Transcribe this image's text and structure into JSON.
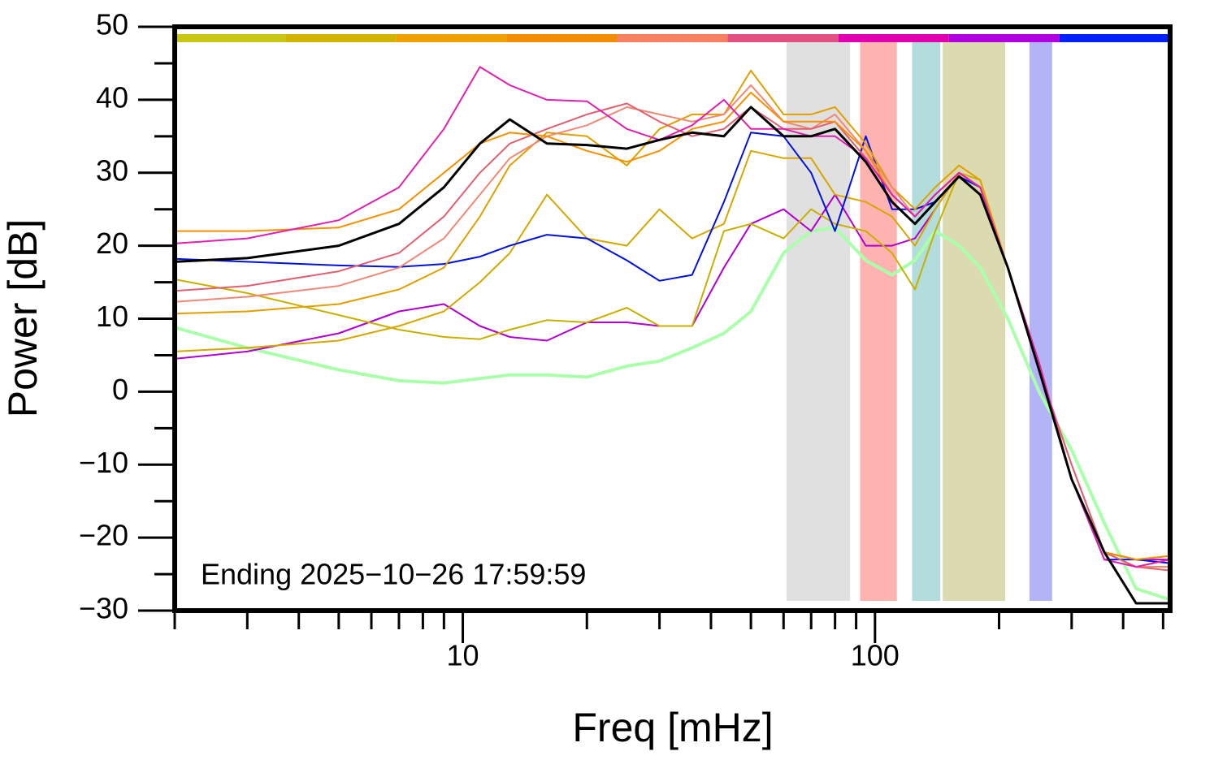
{
  "chart_data": {
    "type": "line",
    "x_label": "Freq [mHz]",
    "y_label": "Power [dB]",
    "annotation": "Ending 2025−10−26 17:59:59",
    "xlog": true,
    "xlim": [
      2,
      520
    ],
    "ylim": [
      -30,
      50
    ],
    "xticks": [
      10,
      100
    ],
    "xminor_ticks": [
      2,
      3,
      4,
      5,
      6,
      7,
      8,
      9,
      20,
      30,
      40,
      50,
      60,
      70,
      80,
      90,
      200,
      300,
      400,
      500
    ],
    "yticks": [
      50,
      40,
      30,
      20,
      10,
      0,
      {
        "value": -10,
        "label": "−10"
      },
      {
        "value": -20,
        "label": "−20"
      },
      {
        "value": -30,
        "label": "−30"
      }
    ],
    "yminor_ticks": [
      45,
      35,
      25,
      15,
      5,
      -5,
      -15,
      -25
    ],
    "color_bar": [
      "#c8c814",
      "#d4b400",
      "#f0a000",
      "#f48c00",
      "#f88060",
      "#e05080",
      "#e000b0",
      "#b000e0",
      "#0020ff"
    ],
    "bands": [
      {
        "start": 61,
        "end": 87,
        "color": "#e0e0e0"
      },
      {
        "start": 92,
        "end": 113,
        "color": "#ffb3b0"
      },
      {
        "start": 123,
        "end": 144,
        "color": "#b3dcdc"
      },
      {
        "start": 146,
        "end": 207,
        "color": "#dcdab0"
      },
      {
        "start": 237,
        "end": 269,
        "color": "#b3b3f8"
      }
    ],
    "x": [
      2,
      3,
      5,
      7,
      9,
      11,
      13,
      16,
      20,
      25,
      30,
      36,
      43,
      50,
      60,
      70,
      80,
      95,
      110,
      125,
      140,
      160,
      180,
      210,
      250,
      300,
      360,
      430,
      520
    ],
    "series": [
      {
        "color": "#aaffaa",
        "width": 4,
        "values": [
          8.8,
          6,
          3,
          1.5,
          1.2,
          1.8,
          2.3,
          2.3,
          2,
          3.5,
          4.2,
          6,
          8,
          11,
          19,
          22,
          22.5,
          18,
          16,
          18,
          22,
          20,
          17,
          10,
          0,
          -8,
          -18,
          -27,
          -28.5
        ]
      },
      {
        "color": "#b000d0",
        "width": 2,
        "values": [
          4.5,
          5.5,
          8,
          11,
          12,
          9,
          7.5,
          7,
          9.5,
          9.5,
          9,
          9,
          17,
          23,
          25,
          22,
          27,
          20,
          20,
          21,
          25,
          30,
          28,
          17,
          3,
          -12,
          -22,
          -23,
          -23
        ]
      },
      {
        "color": "#c8b000",
        "width": 2,
        "values": [
          15.4,
          13.5,
          10.5,
          8.5,
          7.5,
          7.2,
          8.5,
          9.8,
          9.5,
          11.5,
          9,
          9,
          22,
          23,
          21,
          25,
          23,
          22,
          19,
          14,
          22,
          30,
          29,
          17,
          3,
          -12,
          -22,
          -24,
          -23
        ]
      },
      {
        "color": "#d4a800",
        "width": 2,
        "values": [
          5.5,
          6,
          7,
          9,
          11,
          15,
          19,
          27,
          21,
          20,
          25,
          21,
          23,
          33,
          32,
          32,
          27,
          26,
          24,
          20,
          25,
          30,
          28,
          17,
          4,
          -12,
          -22,
          -24,
          -24
        ]
      },
      {
        "color": "#0010e0",
        "width": 2,
        "values": [
          18.2,
          17.8,
          17.3,
          17.1,
          17.5,
          18.5,
          20,
          21.5,
          21,
          18,
          15.2,
          16,
          26,
          35.5,
          35,
          30,
          22,
          35,
          25,
          25,
          26,
          29.5,
          28,
          17,
          3,
          -12,
          -23,
          -23,
          -23.5
        ]
      },
      {
        "color": "#e0a000",
        "width": 2,
        "values": [
          10.7,
          11,
          12,
          14,
          17,
          24,
          31,
          35.5,
          35,
          31,
          36,
          38,
          38,
          44,
          38,
          38,
          39,
          34,
          28,
          25,
          28,
          31,
          29,
          17,
          4,
          -12,
          -22,
          -23,
          -22.5
        ]
      },
      {
        "color": "#f08878",
        "width": 2,
        "values": [
          12.3,
          13,
          14.5,
          17,
          21,
          27,
          32,
          35,
          36.5,
          39,
          38,
          37,
          38,
          42,
          37,
          36,
          38,
          33,
          28,
          24,
          27,
          30,
          28,
          17,
          3,
          -10,
          -22,
          -24,
          -24
        ]
      },
      {
        "color": "#e06070",
        "width": 2,
        "values": [
          13.8,
          14.5,
          16.5,
          19,
          24,
          30,
          34,
          36,
          38,
          39.5,
          37,
          35,
          36,
          39,
          36,
          36,
          37,
          32,
          27,
          24,
          27,
          30,
          28,
          17,
          3,
          -10,
          -22,
          -24,
          -24.5
        ]
      },
      {
        "color": "#f59000",
        "width": 2,
        "values": [
          22,
          22,
          22.5,
          25,
          30,
          34,
          35.5,
          35,
          33,
          31.5,
          33,
          36,
          37,
          41,
          37,
          37,
          37,
          33,
          27,
          24,
          27,
          30,
          28,
          17,
          4,
          -12,
          -22,
          -23,
          -22.5
        ]
      },
      {
        "color": "#e020b0",
        "width": 2,
        "values": [
          20.3,
          21,
          23.5,
          28,
          36,
          44.5,
          42,
          40,
          39.8,
          36,
          34.5,
          36.5,
          40,
          36,
          36,
          35,
          35,
          32,
          27,
          24,
          27,
          30,
          28,
          17,
          4,
          -12,
          -23,
          -24,
          -23
        ]
      },
      {
        "color": "#000000",
        "width": 3,
        "values": [
          17.8,
          18.3,
          20,
          23,
          28,
          34,
          37.3,
          34,
          33.8,
          33.3,
          34.5,
          35.5,
          35,
          39,
          35,
          35,
          36,
          31.5,
          26,
          23,
          26,
          29.5,
          27,
          17,
          3,
          -12,
          -22,
          -29,
          -29
        ]
      }
    ]
  }
}
